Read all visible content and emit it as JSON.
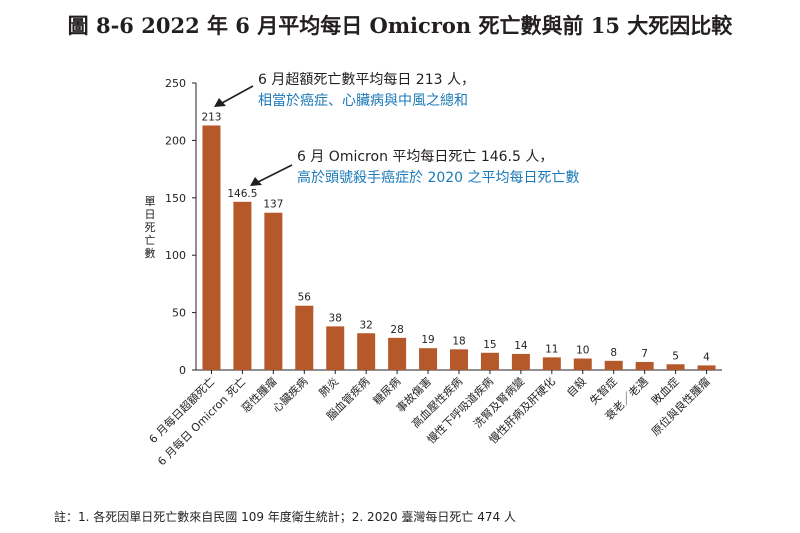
{
  "figure_title": "圖 8-6 2022 年 6 月平均每日 Omicron 死亡數與前 15 大死因比較",
  "footnote": "註：1. 各死因單日死亡數來自民國 109 年度衛生統計；2. 2020 臺灣每日死亡 474 人",
  "colors": {
    "bar": "#b5592b",
    "highlight_label": "#b5592b",
    "annotation_blue": "#1d7ab8",
    "text": "#231f20"
  },
  "annotations": [
    {
      "line1": "6 月超額死亡數平均每日 213 人，",
      "line2": "相當於癌症、心臟病與中風之總和"
    },
    {
      "line1": "6 月 Omicron 平均每日死亡 146.5 人，",
      "line2": "高於頭號殺手癌症於 2020 之平均每日死亡數"
    }
  ],
  "chart_data": {
    "type": "bar",
    "title": "",
    "xlabel": "",
    "ylabel": "單日死亡數",
    "ylim": [
      0,
      250
    ],
    "yticks": [
      0,
      50,
      100,
      150,
      200,
      250
    ],
    "grid": false,
    "categories": [
      "6 月每日超額死亡",
      "6 月每日 Omicron 死亡",
      "惡性腫瘤",
      "心臟疾病",
      "肺炎",
      "腦血管疾病",
      "糖尿病",
      "事故傷害",
      "高血壓性疾病",
      "慢性下呼吸道疾病",
      "洗腎及腎病變",
      "慢性肝病及肝硬化",
      "自殺",
      "失智症",
      "衰老／老邁",
      "敗血症",
      "原位與良性腫瘤"
    ],
    "values": [
      213,
      146.5,
      137,
      56,
      38,
      32,
      28,
      19,
      18,
      15,
      14,
      11,
      10,
      8,
      7,
      5,
      4
    ],
    "value_labels": [
      "213",
      "146.5",
      "137",
      "56",
      "38",
      "32",
      "28",
      "19",
      "18",
      "15",
      "14",
      "11",
      "10",
      "8",
      "7",
      "5",
      "4"
    ],
    "highlighted_value_labels": [
      0,
      1
    ]
  }
}
